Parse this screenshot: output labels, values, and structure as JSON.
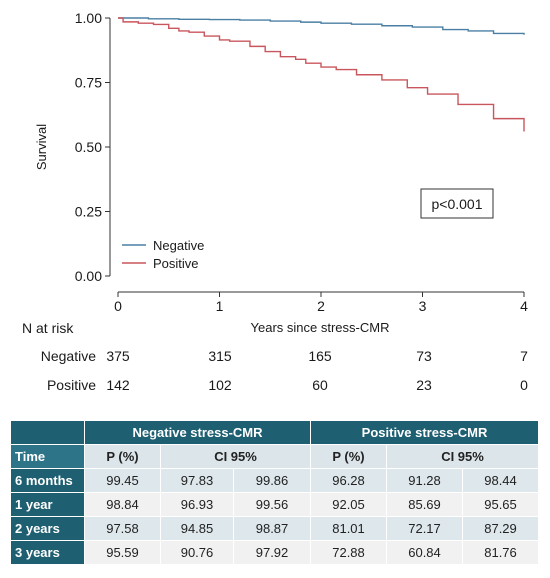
{
  "chart_data": {
    "type": "line",
    "step": true,
    "ylabel": "Survival",
    "xlabel": "Years since stress-CMR",
    "xlim": [
      0,
      4
    ],
    "ylim": [
      0,
      1
    ],
    "x_ticks": [
      "0",
      "1",
      "2",
      "3",
      "4"
    ],
    "y_ticks": [
      "0.00",
      "0.25",
      "0.50",
      "0.75",
      "1.00"
    ],
    "legend_placement": "bottom-left",
    "annotation": "p<0.001",
    "series": [
      {
        "name": "Negative",
        "color": "#4a7fa3",
        "x": [
          0,
          0.3,
          0.6,
          0.9,
          1.2,
          1.5,
          1.8,
          2.0,
          2.3,
          2.6,
          2.9,
          3.2,
          3.45,
          3.7,
          4.0
        ],
        "y": [
          1.0,
          0.997,
          0.995,
          0.994,
          0.992,
          0.988,
          0.984,
          0.98,
          0.976,
          0.97,
          0.965,
          0.955,
          0.95,
          0.94,
          0.935
        ]
      },
      {
        "name": "Positive",
        "color": "#c9565c",
        "x": [
          0,
          0.05,
          0.2,
          0.35,
          0.5,
          0.6,
          0.7,
          0.85,
          1.0,
          1.1,
          1.3,
          1.45,
          1.6,
          1.75,
          1.85,
          2.0,
          2.15,
          2.35,
          2.6,
          2.85,
          3.05,
          3.35,
          3.7,
          4.0
        ],
        "y": [
          1.0,
          0.985,
          0.98,
          0.975,
          0.96,
          0.95,
          0.945,
          0.93,
          0.915,
          0.91,
          0.89,
          0.87,
          0.85,
          0.84,
          0.825,
          0.81,
          0.8,
          0.78,
          0.76,
          0.73,
          0.705,
          0.665,
          0.61,
          0.56
        ]
      }
    ]
  },
  "risk_table": {
    "title": "N at risk",
    "rows": [
      {
        "label": "Negative",
        "values": [
          "375",
          "315",
          "165",
          "73",
          "7"
        ]
      },
      {
        "label": "Positive",
        "values": [
          "142",
          "102",
          "60",
          "23",
          "0"
        ]
      }
    ]
  },
  "summary_table": {
    "group_headers": [
      "Negative stress-CMR",
      "Positive stress-CMR"
    ],
    "time_header": "Time",
    "sub_headers": [
      "P (%)",
      "CI 95%",
      "P (%)",
      "CI 95%"
    ],
    "rows": [
      {
        "time": "6 months",
        "values": [
          "99.45",
          "97.83",
          "99.86",
          "96.28",
          "91.28",
          "98.44"
        ]
      },
      {
        "time": "1 year",
        "values": [
          "98.84",
          "96.93",
          "99.56",
          "92.05",
          "85.69",
          "95.65"
        ]
      },
      {
        "time": "2 years",
        "values": [
          "97.58",
          "94.85",
          "98.87",
          "81.01",
          "72.17",
          "87.29"
        ]
      },
      {
        "time": "3 years",
        "values": [
          "95.59",
          "90.76",
          "97.92",
          "72.88",
          "60.84",
          "81.76"
        ]
      }
    ]
  }
}
